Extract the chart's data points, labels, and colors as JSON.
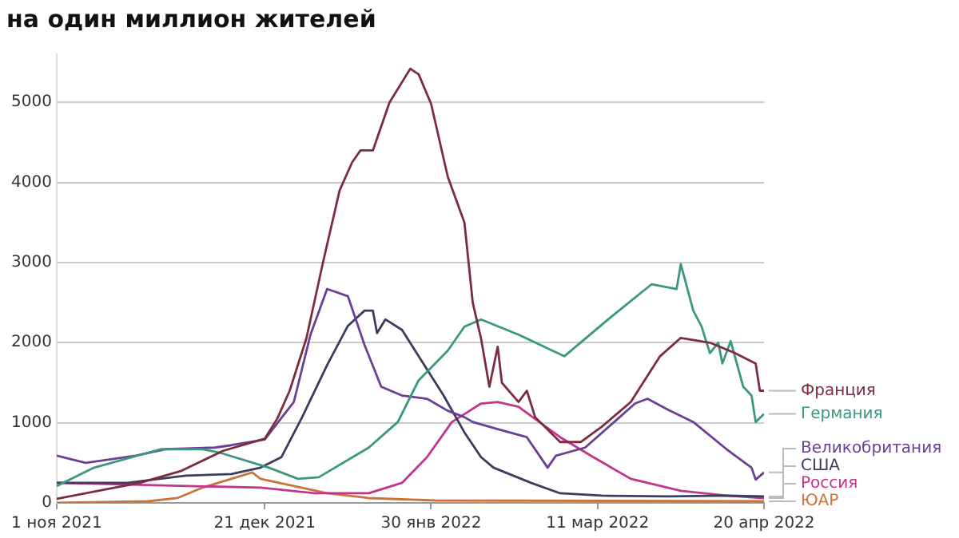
{
  "chart_data": {
    "type": "line",
    "title": "на один миллион жителей",
    "xlim": [
      "2021-11-01",
      "2022-04-20"
    ],
    "xticks": [
      {
        "value": "2021-11-01",
        "label": "1 ноя 2021"
      },
      {
        "value": "2021-12-21",
        "label": "21 дек 2021"
      },
      {
        "value": "2022-01-30",
        "label": "30 янв 2022"
      },
      {
        "value": "2022-03-11",
        "label": "11 мар 2022"
      },
      {
        "value": "2022-04-20",
        "label": "20 апр 2022"
      }
    ],
    "ylim": [
      0,
      5600
    ],
    "yticks": [
      0,
      1000,
      2000,
      3000,
      4000,
      5000
    ],
    "grid": "y",
    "legend": false,
    "marker": "none",
    "series": [
      {
        "name": "Франция",
        "color": "#7b2d3f",
        "x": [
          "2021-11-01",
          "2021-11-21",
          "2021-12-01",
          "2021-12-11",
          "2021-12-21",
          "2021-12-24",
          "2021-12-27",
          "2021-12-31",
          "2022-01-04",
          "2022-01-08",
          "2022-01-11",
          "2022-01-13",
          "2022-01-16",
          "2022-01-20",
          "2022-01-25",
          "2022-01-27",
          "2022-01-30",
          "2022-02-03",
          "2022-02-07",
          "2022-02-08",
          "2022-02-09",
          "2022-02-11",
          "2022-02-13",
          "2022-02-15",
          "2022-02-16",
          "2022-02-20",
          "2022-02-22",
          "2022-02-24",
          "2022-03-02",
          "2022-03-07",
          "2022-03-12",
          "2022-03-19",
          "2022-03-26",
          "2022-03-31",
          "2022-04-07",
          "2022-04-13",
          "2022-04-18",
          "2022-04-19",
          "2022-04-20"
        ],
        "values": [
          50,
          250,
          400,
          650,
          800,
          1050,
          1400,
          2050,
          3000,
          3900,
          4250,
          4400,
          4400,
          5000,
          5420,
          5350,
          4980,
          4070,
          3500,
          3000,
          2500,
          2050,
          1450,
          1950,
          1500,
          1260,
          1400,
          1070,
          760,
          760,
          950,
          1260,
          1830,
          2060,
          2000,
          1870,
          1740,
          1400,
          1400
        ]
      },
      {
        "name": "Германия",
        "color": "#3a9882",
        "x": [
          "2021-11-01",
          "2021-11-10",
          "2021-11-26",
          "2021-12-06",
          "2021-12-10",
          "2021-12-22",
          "2021-12-29",
          "2022-01-03",
          "2022-01-15",
          "2022-01-22",
          "2022-01-27",
          "2022-02-03",
          "2022-02-07",
          "2022-02-11",
          "2022-02-20",
          "2022-03-03",
          "2022-03-14",
          "2022-03-24",
          "2022-03-30",
          "2022-03-31",
          "2022-04-03",
          "2022-04-05",
          "2022-04-07",
          "2022-04-09",
          "2022-04-10",
          "2022-04-12",
          "2022-04-15",
          "2022-04-17",
          "2022-04-18",
          "2022-04-20"
        ],
        "values": [
          210,
          440,
          670,
          670,
          630,
          440,
          300,
          320,
          690,
          1010,
          1530,
          1900,
          2200,
          2290,
          2100,
          1830,
          2310,
          2730,
          2670,
          2980,
          2400,
          2200,
          1870,
          2000,
          1740,
          2020,
          1450,
          1340,
          1010,
          1110
        ]
      },
      {
        "name": "Великобритания",
        "color": "#6a3f94",
        "x": [
          "2021-11-01",
          "2021-11-08",
          "2021-11-20",
          "2021-11-27",
          "2021-12-09",
          "2021-12-13",
          "2021-12-21",
          "2021-12-28",
          "2022-01-01",
          "2022-01-05",
          "2022-01-10",
          "2022-01-14",
          "2022-01-18",
          "2022-01-23",
          "2022-01-29",
          "2022-02-03",
          "2022-02-07",
          "2022-02-09",
          "2022-02-15",
          "2022-02-22",
          "2022-02-27",
          "2022-03-01",
          "2022-03-08",
          "2022-03-15",
          "2022-03-20",
          "2022-03-23",
          "2022-03-28",
          "2022-04-03",
          "2022-04-11",
          "2022-04-17",
          "2022-04-18",
          "2022-04-20"
        ],
        "values": [
          590,
          500,
          590,
          670,
          690,
          720,
          790,
          1260,
          2100,
          2670,
          2580,
          1970,
          1450,
          1340,
          1300,
          1150,
          1070,
          1010,
          920,
          820,
          440,
          590,
          690,
          1010,
          1240,
          1300,
          1160,
          1010,
          670,
          440,
          290,
          380
        ]
      },
      {
        "name": "США",
        "color": "#3b3d5c",
        "x": [
          "2021-11-01",
          "2021-11-18",
          "2021-12-02",
          "2021-12-13",
          "2021-12-20",
          "2021-12-25",
          "2021-12-30",
          "2022-01-05",
          "2022-01-10",
          "2022-01-14",
          "2022-01-16",
          "2022-01-17",
          "2022-01-19",
          "2022-01-23",
          "2022-01-27",
          "2022-02-02",
          "2022-02-07",
          "2022-02-11",
          "2022-02-14",
          "2022-02-23",
          "2022-03-02",
          "2022-03-12",
          "2022-03-28",
          "2022-04-11",
          "2022-04-20"
        ],
        "values": [
          250,
          250,
          340,
          360,
          440,
          570,
          1070,
          1720,
          2210,
          2400,
          2400,
          2120,
          2290,
          2160,
          1830,
          1340,
          880,
          570,
          440,
          250,
          120,
          90,
          80,
          90,
          80
        ]
      },
      {
        "name": "Россия",
        "color": "#c2358a",
        "x": [
          "2021-11-01",
          "2021-12-20",
          "2022-01-02",
          "2022-01-15",
          "2022-01-23",
          "2022-01-29",
          "2022-02-04",
          "2022-02-11",
          "2022-02-15",
          "2022-02-20",
          "2022-03-02",
          "2022-03-10",
          "2022-03-19",
          "2022-03-31",
          "2022-04-11",
          "2022-04-20"
        ],
        "values": [
          250,
          190,
          120,
          120,
          250,
          570,
          1010,
          1240,
          1260,
          1200,
          820,
          570,
          300,
          150,
          90,
          60
        ]
      },
      {
        "name": "ЮАР",
        "color": "#c8743a",
        "x": [
          "2021-11-01",
          "2021-11-23",
          "2021-11-30",
          "2021-12-06",
          "2021-12-13",
          "2021-12-18",
          "2021-12-20",
          "2021-12-28",
          "2022-01-05",
          "2022-01-15",
          "2022-01-31",
          "2022-04-20"
        ],
        "values": [
          0,
          20,
          60,
          190,
          300,
          380,
          300,
          210,
          120,
          60,
          30,
          20
        ]
      }
    ]
  }
}
